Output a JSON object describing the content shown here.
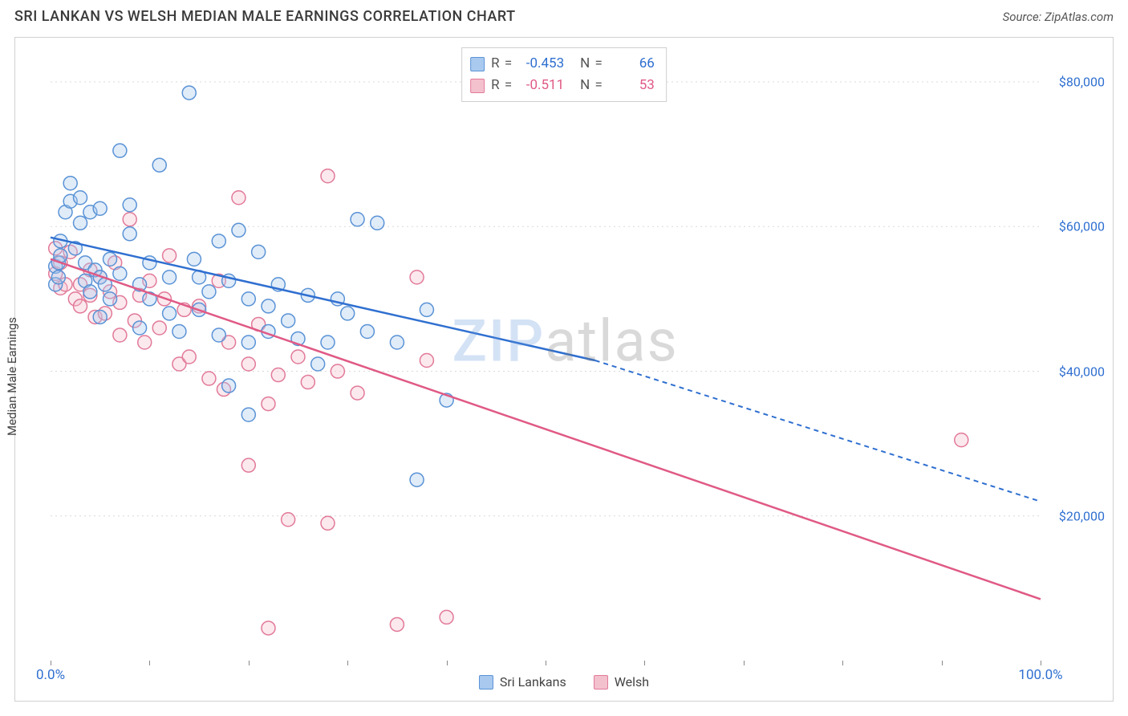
{
  "title": "SRI LANKAN VS WELSH MEDIAN MALE EARNINGS CORRELATION CHART",
  "source": "Source: ZipAtlas.com",
  "y_axis_label": "Median Male Earnings",
  "watermark": {
    "part1": "ZIP",
    "part2": "atlas"
  },
  "chart": {
    "type": "scatter-with-trendlines",
    "background_color": "#ffffff",
    "border_color": "#d0d0d0",
    "grid_color": "#d9d9d9",
    "xlim": [
      0,
      100
    ],
    "ylim": [
      0,
      85000
    ],
    "x_ticks": [
      0,
      10,
      20,
      30,
      40,
      50,
      60,
      70,
      80,
      90,
      100
    ],
    "x_tick_labels": {
      "0": "0.0%",
      "100": "100.0%"
    },
    "x_tick_label_color": "#2f6fd0",
    "y_ticks": [
      20000,
      40000,
      60000,
      80000
    ],
    "y_tick_labels": [
      "$20,000",
      "$40,000",
      "$60,000",
      "$80,000"
    ],
    "y_tick_label_color": "#2f6fd0",
    "marker_radius": 8.5,
    "marker_stroke_width": 1.5,
    "marker_fill_opacity": 0.35,
    "series": [
      {
        "key": "sri_lankans",
        "label": "Sri Lankans",
        "color_fill": "#a9c9ef",
        "color_stroke": "#5a93d6",
        "color_line": "#2f6fd0",
        "R": "-0.453",
        "N": "66",
        "trend": {
          "x0": 0,
          "y0": 58500,
          "x_solid_end": 55,
          "y_solid_end": 41500,
          "x1": 100,
          "y1": 22000
        },
        "points": [
          [
            0.5,
            52000
          ],
          [
            0.5,
            54500
          ],
          [
            0.8,
            55000
          ],
          [
            0.8,
            53000
          ],
          [
            1,
            56000
          ],
          [
            1,
            58000
          ],
          [
            1.5,
            62000
          ],
          [
            2,
            66000
          ],
          [
            2,
            63500
          ],
          [
            2.5,
            57000
          ],
          [
            3,
            64000
          ],
          [
            3,
            60500
          ],
          [
            3.5,
            52500
          ],
          [
            3.5,
            55000
          ],
          [
            4,
            62000
          ],
          [
            4,
            51000
          ],
          [
            4.5,
            54000
          ],
          [
            5,
            53000
          ],
          [
            5,
            62500
          ],
          [
            5,
            47500
          ],
          [
            5.5,
            52000
          ],
          [
            6,
            55500
          ],
          [
            6,
            50000
          ],
          [
            7,
            53500
          ],
          [
            7,
            70500
          ],
          [
            8,
            59000
          ],
          [
            8,
            63000
          ],
          [
            9,
            52000
          ],
          [
            9,
            46000
          ],
          [
            10,
            55000
          ],
          [
            10,
            50000
          ],
          [
            11,
            68500
          ],
          [
            12,
            53000
          ],
          [
            12,
            48000
          ],
          [
            13,
            45500
          ],
          [
            14,
            78500
          ],
          [
            14.5,
            55500
          ],
          [
            15,
            48500
          ],
          [
            15,
            53000
          ],
          [
            16,
            51000
          ],
          [
            17,
            45000
          ],
          [
            17,
            58000
          ],
          [
            18,
            52500
          ],
          [
            18,
            38000
          ],
          [
            19,
            59500
          ],
          [
            20,
            44000
          ],
          [
            20,
            50000
          ],
          [
            20,
            34000
          ],
          [
            21,
            56500
          ],
          [
            22,
            49000
          ],
          [
            22,
            45500
          ],
          [
            23,
            52000
          ],
          [
            24,
            47000
          ],
          [
            25,
            44500
          ],
          [
            26,
            50500
          ],
          [
            27,
            41000
          ],
          [
            28,
            44000
          ],
          [
            29,
            50000
          ],
          [
            30,
            48000
          ],
          [
            31,
            61000
          ],
          [
            32,
            45500
          ],
          [
            33,
            60500
          ],
          [
            35,
            44000
          ],
          [
            37,
            25000
          ],
          [
            38,
            48500
          ],
          [
            40,
            36000
          ]
        ]
      },
      {
        "key": "welsh",
        "label": "Welsh",
        "color_fill": "#f3c0cd",
        "color_stroke": "#e27a99",
        "color_line": "#e05a85",
        "R": "-0.511",
        "N": "53",
        "trend": {
          "x0": 0,
          "y0": 55500,
          "x_solid_end": 100,
          "y_solid_end": 8500,
          "x1": 100,
          "y1": 8500
        },
        "points": [
          [
            0.5,
            57000
          ],
          [
            0.5,
            53500
          ],
          [
            1,
            55000
          ],
          [
            1,
            51500
          ],
          [
            1.5,
            52000
          ],
          [
            2,
            56500
          ],
          [
            2.5,
            50000
          ],
          [
            3,
            52000
          ],
          [
            3,
            49000
          ],
          [
            4,
            54000
          ],
          [
            4,
            50500
          ],
          [
            4.5,
            47500
          ],
          [
            5,
            53000
          ],
          [
            5.5,
            48000
          ],
          [
            6,
            51000
          ],
          [
            6.5,
            55000
          ],
          [
            7,
            49500
          ],
          [
            7,
            45000
          ],
          [
            8,
            61000
          ],
          [
            8.5,
            47000
          ],
          [
            9,
            50500
          ],
          [
            9.5,
            44000
          ],
          [
            10,
            52500
          ],
          [
            11,
            46000
          ],
          [
            11.5,
            50000
          ],
          [
            12,
            56000
          ],
          [
            13,
            41000
          ],
          [
            13.5,
            48500
          ],
          [
            14,
            42000
          ],
          [
            15,
            49000
          ],
          [
            16,
            39000
          ],
          [
            17,
            52500
          ],
          [
            17.5,
            37500
          ],
          [
            18,
            44000
          ],
          [
            19,
            64000
          ],
          [
            20,
            41000
          ],
          [
            20,
            27000
          ],
          [
            21,
            46500
          ],
          [
            22,
            35500
          ],
          [
            22,
            4500
          ],
          [
            23,
            39500
          ],
          [
            24,
            19500
          ],
          [
            25,
            42000
          ],
          [
            26,
            38500
          ],
          [
            28,
            67000
          ],
          [
            28,
            19000
          ],
          [
            29,
            40000
          ],
          [
            31,
            37000
          ],
          [
            35,
            5000
          ],
          [
            37,
            53000
          ],
          [
            38,
            41500
          ],
          [
            40,
            6000
          ],
          [
            92,
            30500
          ]
        ]
      }
    ]
  },
  "legend_bottom": [
    {
      "label": "Sri Lankans",
      "fill": "#a9c9ef",
      "stroke": "#5a93d6"
    },
    {
      "label": "Welsh",
      "fill": "#f3c0cd",
      "stroke": "#e27a99"
    }
  ]
}
